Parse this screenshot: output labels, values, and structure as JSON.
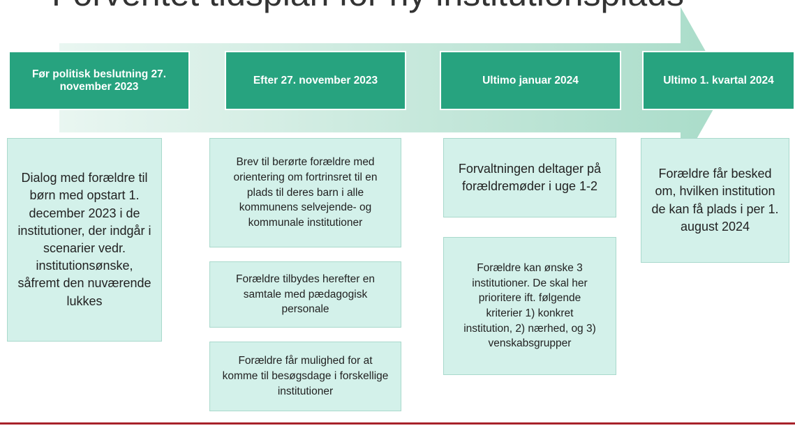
{
  "title": "Forventet tidsplan for ny institutionsplads",
  "columns": [
    {
      "header": "Før politisk beslutning 27. november 2023",
      "boxes": [
        "Dialog med forældre til børn med opstart 1. december 2023 i de institutioner, der indgår i scenarier vedr. institutionsønske, såfremt den nuværende lukkes"
      ]
    },
    {
      "header": "Efter 27. november 2023",
      "boxes": [
        "Brev til berørte forældre med orientering om fortrinsret til en plads til deres barn i alle kommunens selvejende- og kommunale institutioner",
        "Forældre tilbydes herefter en samtale med pædagogisk personale",
        "Forældre får mulighed for at komme til besøgsdage i forskellige institutioner"
      ]
    },
    {
      "header": "Ultimo januar 2024",
      "boxes": [
        "Forvaltningen deltager på forældremøder i uge 1-2",
        "Forældre kan ønske 3 institutioner. De skal her prioritere ift. følgende kriterier 1) konkret institution, 2) nærhed, og 3) venskabsgrupper"
      ]
    },
    {
      "header": "Ultimo 1. kvartal 2024",
      "boxes": [
        "Forældre får besked om, hvilken institution de kan få plads i per 1. august 2024"
      ]
    }
  ]
}
